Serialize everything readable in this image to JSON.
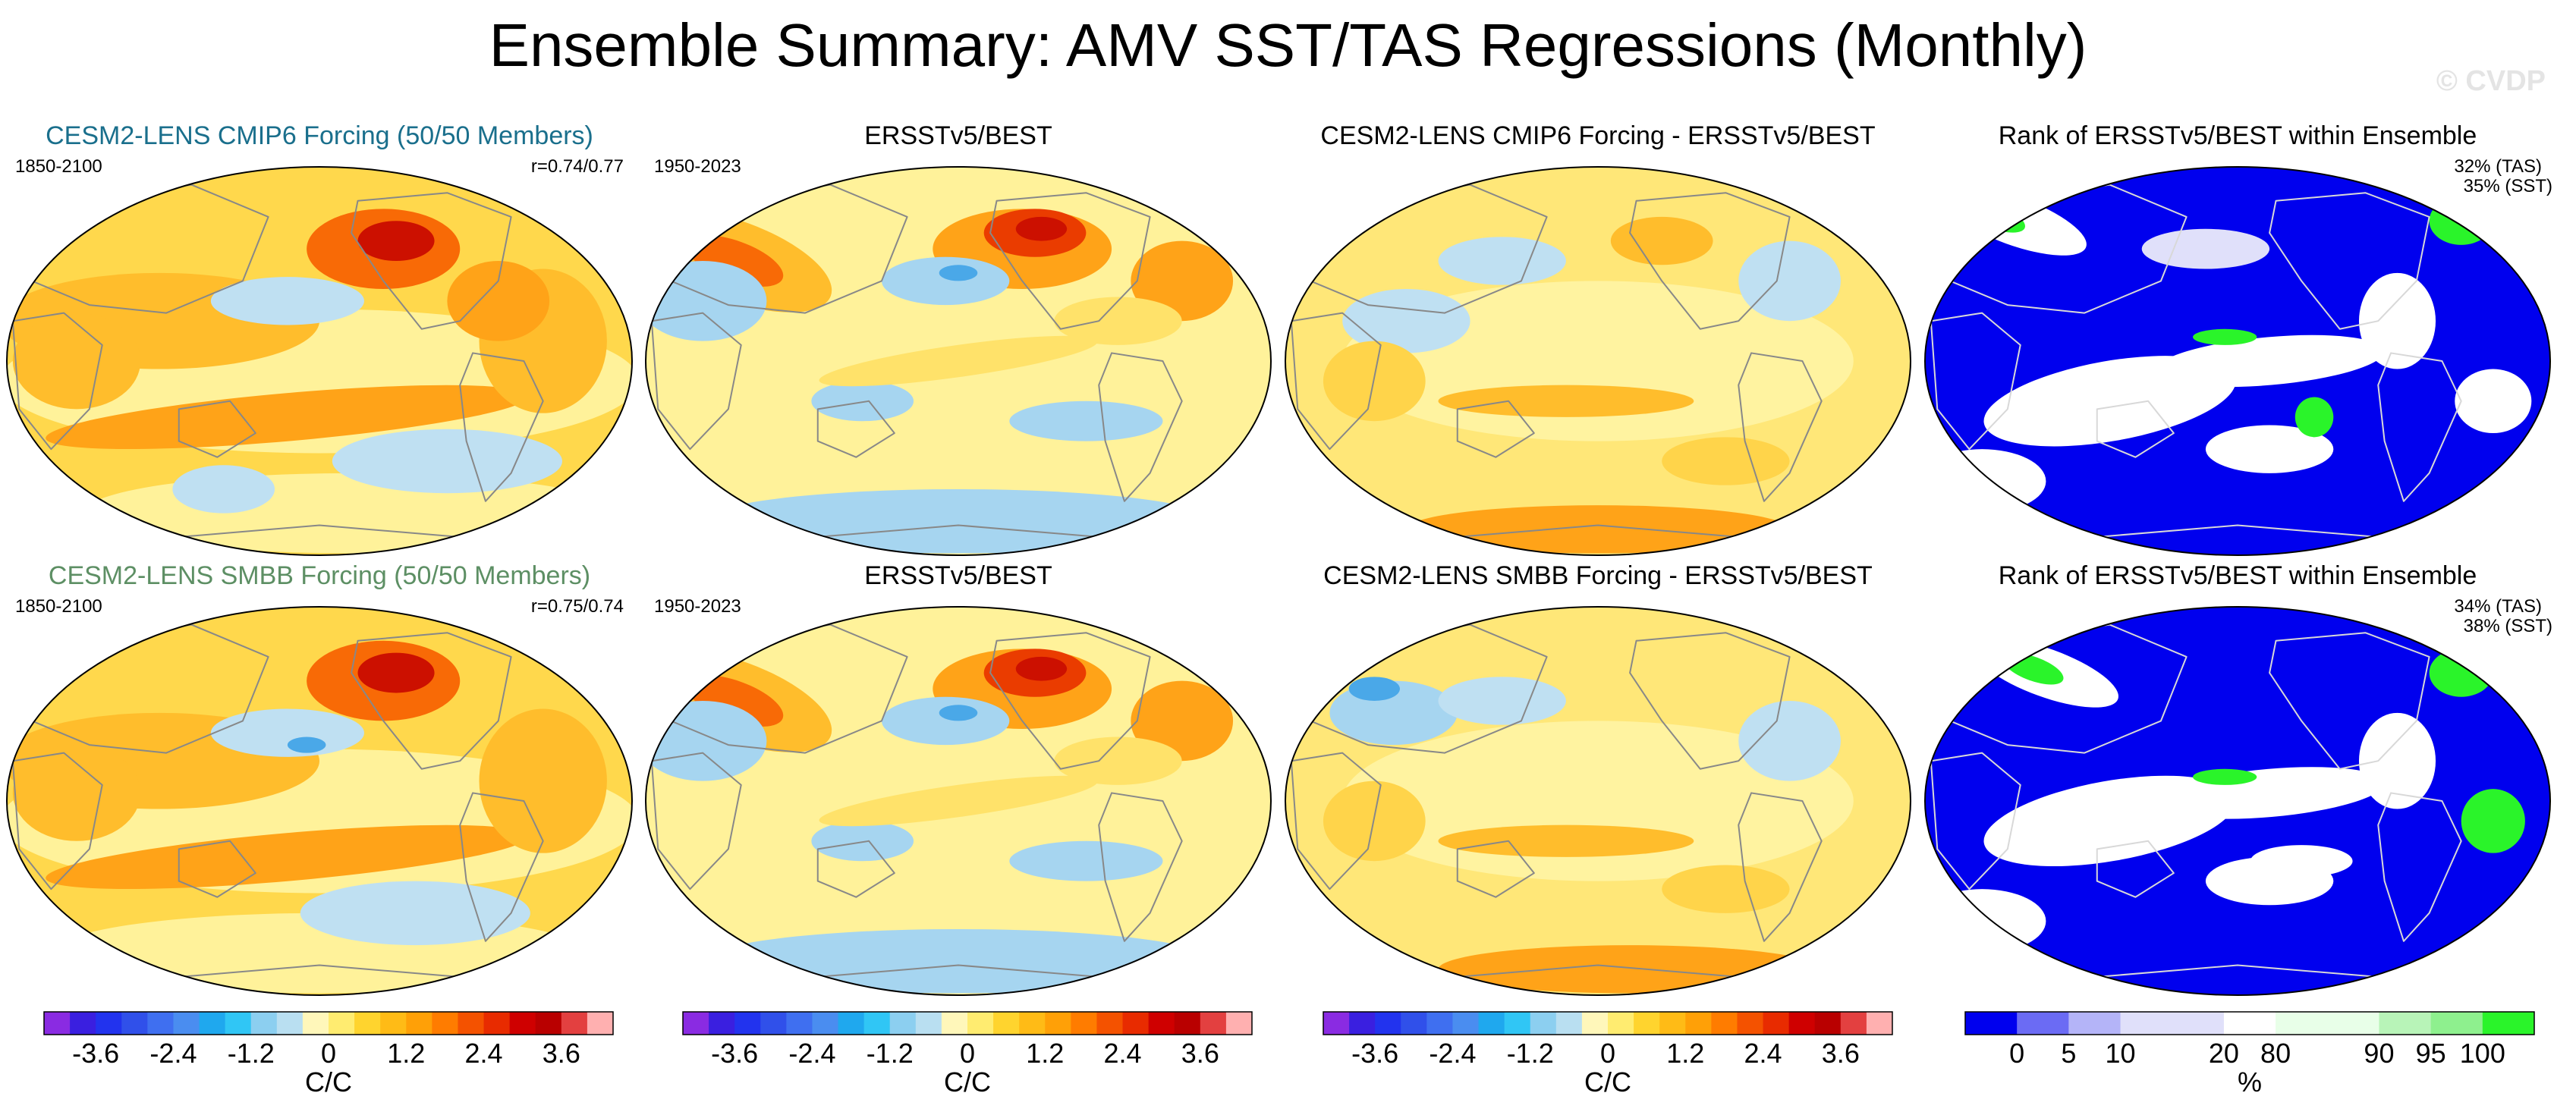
{
  "header": {
    "title": "Ensemble Summary: AMV SST/TAS Regressions (Monthly)",
    "watermark": "© CVDP"
  },
  "panels": [
    {
      "title": "CESM2-LENS CMIP6 Forcing (50/50 Members)",
      "left_label": "1850-2100",
      "right_label": "r=0.74/0.77",
      "type": "regression",
      "variant": "ens1"
    },
    {
      "title": "ERSSTv5/BEST",
      "left_label": "1950-2023",
      "type": "regression",
      "variant": "obs"
    },
    {
      "title": "CESM2-LENS CMIP6 Forcing - ERSSTv5/BEST",
      "type": "difference",
      "variant": "diff1"
    },
    {
      "title": "Rank of ERSSTv5/BEST within Ensemble",
      "right_label": "32% (TAS)",
      "right_label2": "35% (SST)",
      "type": "rank",
      "variant": "rank1"
    },
    {
      "title": "CESM2-LENS SMBB Forcing (50/50 Members)",
      "left_label": "1850-2100",
      "right_label": "r=0.75/0.74",
      "type": "regression",
      "variant": "ens2"
    },
    {
      "title": "ERSSTv5/BEST",
      "left_label": "1950-2023",
      "type": "regression",
      "variant": "obs"
    },
    {
      "title": "CESM2-LENS SMBB Forcing - ERSSTv5/BEST",
      "type": "difference",
      "variant": "diff2"
    },
    {
      "title": "Rank of ERSSTv5/BEST within Ensemble",
      "right_label": "34% (TAS)",
      "right_label2": "38% (SST)",
      "type": "rank",
      "variant": "rank2"
    }
  ],
  "colorbars": [
    {
      "unit": "C/C",
      "ticks": [
        "-3.6",
        "-2.4",
        "-1.2",
        "0",
        "1.2",
        "2.4",
        "3.6"
      ],
      "tick_boundaries": [
        2,
        5,
        8,
        11,
        14,
        17,
        20
      ],
      "colors": [
        "#8a2be2",
        "#3a1fe0",
        "#2233ee",
        "#3050ea",
        "#3f6ff0",
        "#4a8df0",
        "#1fa8ee",
        "#30c6f5",
        "#8ccff0",
        "#b9dff1",
        "#fff7ba",
        "#ffec70",
        "#ffd42e",
        "#ffbb16",
        "#ffa007",
        "#ff7c00",
        "#f45200",
        "#e82b00",
        "#cf0000",
        "#b90000",
        "#e34040",
        "#ffb0b0"
      ]
    },
    {
      "unit": "%",
      "ticks": [
        "0",
        "5",
        "10",
        "20",
        "80",
        "90",
        "95",
        "100"
      ],
      "tick_boundaries": [
        1,
        2,
        3,
        5,
        6,
        8,
        9,
        10
      ],
      "colors": [
        "#0000ee",
        "#6b6bf4",
        "#b4b4f8",
        "#e0e0fa",
        "#e0e0fa",
        "#ffffff",
        "#e8ffe8",
        "#e8ffe8",
        "#b8f4b8",
        "#8ef08e",
        "#2af42a"
      ]
    }
  ],
  "chart_data": [
    {
      "type": "heatmap",
      "title": "CESM2-LENS CMIP6 Forcing (50/50 Members)",
      "period": "1850-2100",
      "correlation": "r=0.74/0.77",
      "colorbar_range": [
        -4.2,
        4.2
      ],
      "units": "C/C"
    },
    {
      "type": "heatmap",
      "title": "ERSSTv5/BEST",
      "period": "1950-2023",
      "colorbar_range": [
        -4.2,
        4.2
      ],
      "units": "C/C"
    },
    {
      "type": "heatmap",
      "title": "CESM2-LENS CMIP6 Forcing - ERSSTv5/BEST",
      "colorbar_range": [
        -4.2,
        4.2
      ],
      "units": "C/C"
    },
    {
      "type": "heatmap",
      "title": "Rank of ERSSTv5/BEST within Ensemble",
      "stats": [
        "32% (TAS)",
        "35% (SST)"
      ],
      "units": "%"
    },
    {
      "type": "heatmap",
      "title": "CESM2-LENS SMBB Forcing (50/50 Members)",
      "period": "1850-2100",
      "correlation": "r=0.75/0.74",
      "colorbar_range": [
        -4.2,
        4.2
      ],
      "units": "C/C"
    },
    {
      "type": "heatmap",
      "title": "ERSSTv5/BEST",
      "period": "1950-2023",
      "colorbar_range": [
        -4.2,
        4.2
      ],
      "units": "C/C"
    },
    {
      "type": "heatmap",
      "title": "CESM2-LENS SMBB Forcing - ERSSTv5/BEST",
      "colorbar_range": [
        -4.2,
        4.2
      ],
      "units": "C/C"
    },
    {
      "type": "heatmap",
      "title": "Rank of ERSSTv5/BEST within Ensemble",
      "stats": [
        "34% (TAS)",
        "38% (SST)"
      ],
      "units": "%"
    }
  ]
}
